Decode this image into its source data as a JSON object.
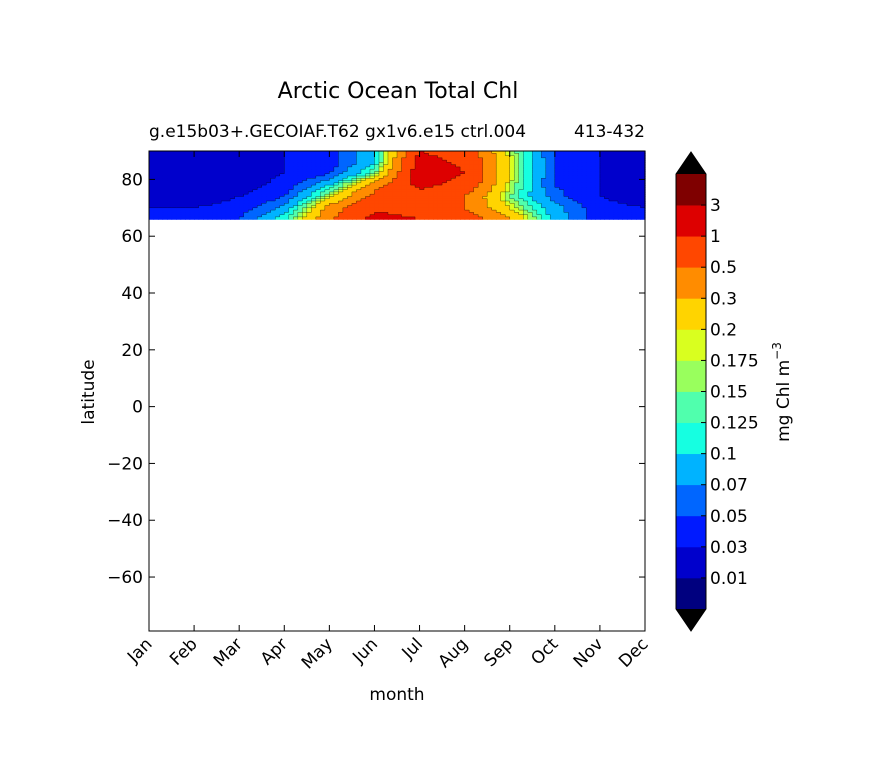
{
  "chart_data": {
    "type": "heatmap",
    "title": "Arctic Ocean Total Chl",
    "subtitle": "g.e15b03+.GECOIAF.T62 gx1v6.e15 ctrl.004",
    "subtitle_years": "413-432",
    "xlabel": "month",
    "ylabel": "latitude",
    "colorbar_label": "mg Chl m",
    "colorbar_label_exponent": "−3",
    "x_categories": [
      "Jan",
      "Feb",
      "Mar",
      "Apr",
      "May",
      "Jun",
      "Jul",
      "Aug",
      "Sep",
      "Oct",
      "Nov",
      "Dec"
    ],
    "xlim": [
      0,
      11
    ],
    "ylim": [
      -79,
      90
    ],
    "y_ticks": [
      80,
      60,
      40,
      20,
      0,
      -20,
      -40,
      -60
    ],
    "y_tick_labels": [
      "80",
      "60",
      "40",
      "20",
      "0",
      "−20",
      "−40",
      "−60"
    ],
    "data_lat_range": [
      66,
      90
    ],
    "levels": [
      0.01,
      0.03,
      0.05,
      0.07,
      0.1,
      0.125,
      0.15,
      0.175,
      0.2,
      0.3,
      0.5,
      1,
      3
    ],
    "level_labels": [
      "0.01",
      "0.03",
      "0.05",
      "0.07",
      "0.1",
      "0.125",
      "0.15",
      "0.175",
      "0.2",
      "0.3",
      "0.5",
      "1",
      "3"
    ],
    "colors": [
      "#00007f",
      "#0000cc",
      "#001aff",
      "#0066ff",
      "#00b3ff",
      "#16ffe1",
      "#50ffad",
      "#99ff5d",
      "#d9ff1f",
      "#ffd400",
      "#ff8c00",
      "#ff4700",
      "#dd0000",
      "#7f0000"
    ],
    "extend": "both",
    "grid": false,
    "field": {
      "months": [
        0,
        1,
        2,
        3,
        4,
        5,
        6,
        7,
        8,
        9,
        10,
        11
      ],
      "latitudes": [
        66,
        70,
        74,
        78,
        82,
        86,
        90
      ],
      "values": [
        [
          0.04,
          0.04,
          0.05,
          0.12,
          0.45,
          1.2,
          1.0,
          0.7,
          0.3,
          0.09,
          0.04,
          0.04
        ],
        [
          0.03,
          0.03,
          0.04,
          0.08,
          0.35,
          0.9,
          0.8,
          0.5,
          0.2,
          0.08,
          0.04,
          0.03
        ],
        [
          0.02,
          0.02,
          0.03,
          0.05,
          0.18,
          0.6,
          0.7,
          0.5,
          0.15,
          0.06,
          0.03,
          0.02
        ],
        [
          0.02,
          0.02,
          0.02,
          0.04,
          0.1,
          0.4,
          1.2,
          0.8,
          0.18,
          0.05,
          0.03,
          0.02
        ],
        [
          0.02,
          0.02,
          0.02,
          0.03,
          0.05,
          0.15,
          1.5,
          1.0,
          0.2,
          0.05,
          0.03,
          0.02
        ],
        [
          0.02,
          0.02,
          0.02,
          0.03,
          0.04,
          0.1,
          1.3,
          0.9,
          0.2,
          0.05,
          0.03,
          0.02
        ],
        [
          0.02,
          0.02,
          0.02,
          0.03,
          0.04,
          0.1,
          1.0,
          0.7,
          0.18,
          0.05,
          0.03,
          0.02
        ]
      ]
    }
  }
}
